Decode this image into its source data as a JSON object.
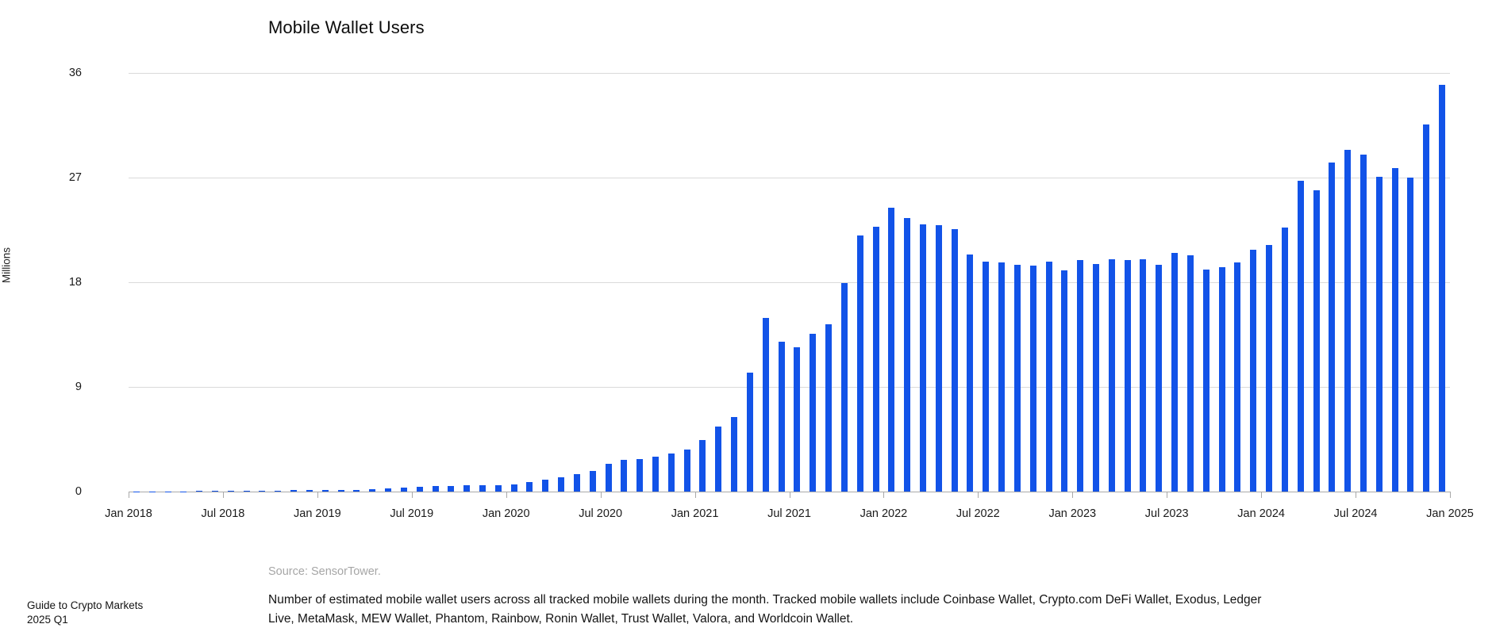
{
  "header": {
    "title": "Mobile Wallet Users"
  },
  "notes": {
    "source": "Source: SensorTower.",
    "description": "Number of estimated mobile wallet users across all tracked mobile wallets during the month. Tracked mobile wallets include Coinbase Wallet, Crypto.com DeFi Wallet, Exodus, Ledger Live, MetaMask, MEW Wallet, Phantom, Rainbow, Ronin Wallet, Trust Wallet, Valora, and Worldcoin Wallet."
  },
  "footer": {
    "line1": "Guide to Crypto Markets",
    "line2": "2025 Q1"
  },
  "chart_data": {
    "type": "bar",
    "title": "Mobile Wallet Users",
    "xlabel": "",
    "ylabel": "Millions",
    "units": "millions of users",
    "bar_color": "#1253e8",
    "grid": "horizontal",
    "legend": "none",
    "ylim": [
      0,
      36
    ],
    "yticks": [
      0,
      9,
      18,
      27,
      36
    ],
    "xtick_labels": [
      "Jan 2018",
      "Jul 2018",
      "Jan 2019",
      "Jul 2019",
      "Jan 2020",
      "Jul 2020",
      "Jan 2021",
      "Jul 2021",
      "Jan 2022",
      "Jul 2022",
      "Jan 2023",
      "Jul 2023",
      "Jan 2024",
      "Jul 2024",
      "Jan 2025"
    ],
    "x_start_month": "2018-01",
    "x_end_month": "2024-12",
    "x": [
      "2018-01",
      "2018-02",
      "2018-03",
      "2018-04",
      "2018-05",
      "2018-06",
      "2018-07",
      "2018-08",
      "2018-09",
      "2018-10",
      "2018-11",
      "2018-12",
      "2019-01",
      "2019-02",
      "2019-03",
      "2019-04",
      "2019-05",
      "2019-06",
      "2019-07",
      "2019-08",
      "2019-09",
      "2019-10",
      "2019-11",
      "2019-12",
      "2020-01",
      "2020-02",
      "2020-03",
      "2020-04",
      "2020-05",
      "2020-06",
      "2020-07",
      "2020-08",
      "2020-09",
      "2020-10",
      "2020-11",
      "2020-12",
      "2021-01",
      "2021-02",
      "2021-03",
      "2021-04",
      "2021-05",
      "2021-06",
      "2021-07",
      "2021-08",
      "2021-09",
      "2021-10",
      "2021-11",
      "2021-12",
      "2022-01",
      "2022-02",
      "2022-03",
      "2022-04",
      "2022-05",
      "2022-06",
      "2022-07",
      "2022-08",
      "2022-09",
      "2022-10",
      "2022-11",
      "2022-12",
      "2023-01",
      "2023-02",
      "2023-03",
      "2023-04",
      "2023-05",
      "2023-06",
      "2023-07",
      "2023-08",
      "2023-09",
      "2023-10",
      "2023-11",
      "2023-12",
      "2024-01",
      "2024-02",
      "2024-03",
      "2024-04",
      "2024-05",
      "2024-06",
      "2024-07",
      "2024-08",
      "2024-09",
      "2024-10",
      "2024-11",
      "2024-12"
    ],
    "values": [
      0.02,
      0.02,
      0.03,
      0.03,
      0.04,
      0.04,
      0.05,
      0.07,
      0.08,
      0.1,
      0.12,
      0.12,
      0.12,
      0.16,
      0.16,
      0.23,
      0.27,
      0.32,
      0.39,
      0.45,
      0.45,
      0.57,
      0.57,
      0.52,
      0.64,
      0.8,
      1.0,
      1.2,
      1.5,
      1.8,
      2.4,
      2.7,
      2.8,
      3.0,
      3.3,
      3.6,
      4.4,
      5.6,
      6.4,
      10.2,
      14.9,
      12.9,
      12.4,
      13.6,
      14.4,
      17.9,
      22.0,
      22.8,
      24.4,
      23.5,
      23.0,
      22.9,
      22.6,
      20.4,
      19.8,
      19.7,
      19.5,
      19.4,
      19.8,
      19.0,
      19.9,
      19.6,
      20.0,
      19.9,
      20.0,
      19.5,
      20.5,
      20.3,
      19.1,
      19.3,
      19.7,
      20.8,
      21.2,
      22.7,
      26.7,
      25.9,
      28.3,
      29.4,
      29.0,
      27.1,
      27.8,
      27.0,
      31.6,
      35.0
    ]
  }
}
